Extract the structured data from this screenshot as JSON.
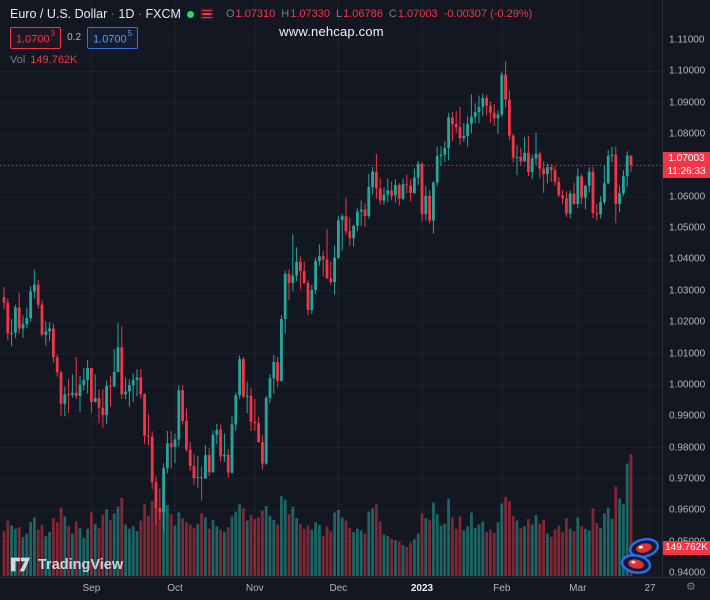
{
  "header": {
    "symbol": "Euro / U.S. Dollar",
    "sep": "·",
    "interval": "1D",
    "exchange": "FXCM",
    "ohlc": {
      "o_label": "O",
      "o": "1.07310",
      "h_label": "H",
      "h": "1.07330",
      "l_label": "L",
      "l": "1.06786",
      "c_label": "C",
      "c": "1.07003",
      "change": "-0.00307 (-0.29%)"
    },
    "bid": "1.0700",
    "bid_sup": "3",
    "spread": "0.2",
    "ask": "1.0700",
    "ask_sup": "5",
    "vol_label": "Vol",
    "vol_value": "149.762K"
  },
  "watermark": "www.nehcap.com",
  "price_badge": {
    "price": "1.07003",
    "countdown": "11:26:33"
  },
  "volume_badge": "149.762K",
  "footer": {
    "brand": "TradingView"
  },
  "gear_glyph": "⚙",
  "price_axis_labels": [
    "1.11000",
    "1.10000",
    "1.09000",
    "1.08000",
    "1.07000",
    "1.06000",
    "1.05000",
    "1.04000",
    "1.03000",
    "1.02000",
    "1.01000",
    "1.00000",
    "0.99000",
    "0.98000",
    "0.97000",
    "0.96000",
    "0.95000",
    "0.94000"
  ],
  "colors": {
    "background": "#131722",
    "grid": "#1e222d",
    "up": "#26a69a",
    "down": "#f23645",
    "vol_up": "rgba(38,166,154,0.55)",
    "vol_down": "rgba(242,54,69,0.5)",
    "axis_text": "#b2b5be",
    "muted_text": "#787b86",
    "badge_red": "#f23645",
    "ask_blue": "#5b9cf6"
  },
  "chart_data": {
    "type": "candlestick",
    "symbol": "EURUSD",
    "description": "Euro / U.S. Dollar",
    "interval": "1D",
    "exchange": "FXCM",
    "ylim": [
      0.94,
      1.11
    ],
    "price_step": 0.01,
    "last_price": 1.07003,
    "ohlc_current": {
      "o": 1.0731,
      "h": 1.0733,
      "l": 1.06786,
      "c": 1.07003,
      "change": -0.00307,
      "change_pct": -0.29
    },
    "volume_current_k": 149.762,
    "volume_unit": "K",
    "months": [
      {
        "label": "Sep",
        "index": 23,
        "major": false
      },
      {
        "label": "Oct",
        "index": 45,
        "major": false
      },
      {
        "label": "Nov",
        "index": 66,
        "major": false
      },
      {
        "label": "Dec",
        "index": 88,
        "major": false
      },
      {
        "label": "2023",
        "index": 110,
        "major": true
      },
      {
        "label": "Feb",
        "index": 131,
        "major": false
      },
      {
        "label": "Mar",
        "index": 151,
        "major": false
      },
      {
        "label": "27",
        "index": 170,
        "major": false
      }
    ],
    "candles": [
      [
        1.028,
        1.0312,
        1.024,
        1.0262,
        55
      ],
      [
        1.0262,
        1.0275,
        1.0142,
        1.0165,
        68
      ],
      [
        1.0165,
        1.021,
        1.0123,
        1.0166,
        62
      ],
      [
        1.0166,
        1.0255,
        1.015,
        1.0247,
        58
      ],
      [
        1.0247,
        1.0293,
        1.0163,
        1.018,
        60
      ],
      [
        1.018,
        1.0222,
        1.015,
        1.0194,
        48
      ],
      [
        1.0194,
        1.0247,
        1.018,
        1.0213,
        52
      ],
      [
        1.0213,
        1.0315,
        1.0203,
        1.0298,
        66
      ],
      [
        1.0298,
        1.0368,
        1.0276,
        1.032,
        72
      ],
      [
        1.032,
        1.0335,
        1.0244,
        1.0256,
        57
      ],
      [
        1.0256,
        1.0269,
        1.0154,
        1.016,
        63
      ],
      [
        1.016,
        1.0202,
        1.0125,
        1.0171,
        49
      ],
      [
        1.0171,
        1.02,
        1.014,
        1.018,
        54
      ],
      [
        1.018,
        1.0195,
        1.007,
        1.0088,
        71
      ],
      [
        1.0088,
        1.0097,
        1.0026,
        1.004,
        66
      ],
      [
        1.004,
        1.0046,
        0.9901,
        0.994,
        84
      ],
      [
        0.994,
        0.9995,
        0.99,
        0.997,
        73
      ],
      [
        0.997,
        1.0019,
        0.991,
        0.9968,
        61
      ],
      [
        0.9968,
        1.0033,
        0.9959,
        0.9975,
        52
      ],
      [
        0.9975,
        1.009,
        0.9955,
        0.9965,
        67
      ],
      [
        0.9965,
        1.0028,
        0.9914,
        1.0,
        59
      ],
      [
        1.0,
        1.0055,
        0.9983,
        1.0015,
        47
      ],
      [
        1.0015,
        1.0079,
        0.9972,
        1.0054,
        58
      ],
      [
        1.0054,
        1.0055,
        0.991,
        0.9945,
        78
      ],
      [
        0.9945,
        1.0033,
        0.9944,
        0.9958,
        64
      ],
      [
        0.9958,
        0.9985,
        0.9878,
        0.9927,
        59
      ],
      [
        0.9927,
        0.9987,
        0.9864,
        0.9904,
        75
      ],
      [
        0.9904,
        1.0014,
        0.9874,
        0.9997,
        82
      ],
      [
        0.9997,
        1.0029,
        0.993,
        0.9995,
        69
      ],
      [
        0.9995,
        1.0113,
        0.9993,
        1.0041,
        77
      ],
      [
        1.0041,
        1.0198,
        1.004,
        1.012,
        85
      ],
      [
        1.012,
        1.0187,
        0.9955,
        0.997,
        96
      ],
      [
        0.997,
        1.0023,
        0.9954,
        0.9979,
        63
      ],
      [
        0.9979,
        1.0018,
        0.993,
        0.9999,
        58
      ],
      [
        0.9999,
        1.0036,
        0.9945,
        1.0016,
        61
      ],
      [
        1.0016,
        1.005,
        0.9964,
        1.0024,
        55
      ],
      [
        1.0024,
        1.0051,
        0.9956,
        0.997,
        68
      ],
      [
        0.997,
        0.9974,
        0.9812,
        0.9838,
        88
      ],
      [
        0.9838,
        0.9907,
        0.9807,
        0.9835,
        74
      ],
      [
        0.9835,
        0.9852,
        0.9667,
        0.969,
        92
      ],
      [
        0.969,
        0.9709,
        0.9554,
        0.9608,
        95
      ],
      [
        0.9608,
        0.967,
        0.9571,
        0.9594,
        81
      ],
      [
        0.9594,
        0.975,
        0.9535,
        0.9734,
        99
      ],
      [
        0.9734,
        0.9853,
        0.9718,
        0.9814,
        87
      ],
      [
        0.9814,
        0.9854,
        0.9733,
        0.9802,
        76
      ],
      [
        0.9802,
        0.9844,
        0.9751,
        0.9826,
        62
      ],
      [
        0.9826,
        0.9999,
        0.9804,
        0.9983,
        78
      ],
      [
        0.9983,
        1.0,
        0.9873,
        0.9885,
        71
      ],
      [
        0.9885,
        0.9925,
        0.9787,
        0.9794,
        66
      ],
      [
        0.9794,
        0.9818,
        0.9726,
        0.9741,
        63
      ],
      [
        0.9741,
        0.9778,
        0.9681,
        0.9703,
        59
      ],
      [
        0.9703,
        0.9773,
        0.967,
        0.9706,
        64
      ],
      [
        0.9706,
        0.974,
        0.9631,
        0.9702,
        77
      ],
      [
        0.9702,
        0.9808,
        0.97,
        0.9776,
        72
      ],
      [
        0.9776,
        0.9799,
        0.9709,
        0.9721,
        58
      ],
      [
        0.9721,
        0.9854,
        0.972,
        0.984,
        69
      ],
      [
        0.984,
        0.9876,
        0.9812,
        0.9857,
        61
      ],
      [
        0.9857,
        0.9874,
        0.9756,
        0.9772,
        57
      ],
      [
        0.9772,
        0.9845,
        0.9754,
        0.9777,
        54
      ],
      [
        0.9777,
        0.9795,
        0.9704,
        0.972,
        60
      ],
      [
        0.972,
        0.9899,
        0.9718,
        0.9874,
        73
      ],
      [
        0.9874,
        0.9976,
        0.9853,
        0.9967,
        79
      ],
      [
        0.9967,
        1.0094,
        0.9956,
        1.0082,
        88
      ],
      [
        1.0082,
        1.0089,
        0.9959,
        0.9963,
        83
      ],
      [
        0.9963,
        1.001,
        0.991,
        0.9965,
        68
      ],
      [
        0.9965,
        0.999,
        0.9853,
        0.9883,
        75
      ],
      [
        0.9883,
        0.9955,
        0.9853,
        0.9878,
        70
      ],
      [
        0.9878,
        0.9898,
        0.9816,
        0.9817,
        72
      ],
      [
        0.9817,
        0.984,
        0.973,
        0.9749,
        80
      ],
      [
        0.9749,
        0.9965,
        0.9745,
        0.9958,
        86
      ],
      [
        0.9958,
        1.0034,
        0.9942,
        1.0021,
        74
      ],
      [
        1.0021,
        1.0096,
        0.9972,
        1.0073,
        69
      ],
      [
        1.0073,
        1.0089,
        0.9992,
        1.0013,
        63
      ],
      [
        1.0013,
        1.0222,
        1.001,
        1.021,
        98
      ],
      [
        1.021,
        1.0364,
        1.0163,
        1.0354,
        94
      ],
      [
        1.0354,
        1.0368,
        1.027,
        1.0325,
        76
      ],
      [
        1.0325,
        1.0481,
        1.0299,
        1.0349,
        85
      ],
      [
        1.0349,
        1.0439,
        1.033,
        1.0393,
        71
      ],
      [
        1.0393,
        1.041,
        1.0305,
        1.0363,
        64
      ],
      [
        1.0363,
        1.0394,
        1.032,
        1.0325,
        58
      ],
      [
        1.0325,
        1.0334,
        1.0222,
        1.0239,
        62
      ],
      [
        1.0239,
        1.0319,
        1.0226,
        1.0303,
        57
      ],
      [
        1.0303,
        1.0405,
        1.029,
        1.0395,
        66
      ],
      [
        1.0395,
        1.0448,
        1.038,
        1.041,
        63
      ],
      [
        1.041,
        1.0428,
        1.0347,
        1.04,
        49
      ],
      [
        1.04,
        1.0497,
        1.0338,
        1.034,
        61
      ],
      [
        1.034,
        1.0394,
        1.0319,
        1.0328,
        55
      ],
      [
        1.0328,
        1.0445,
        1.0288,
        1.0406,
        78
      ],
      [
        1.0406,
        1.0539,
        1.0402,
        1.0525,
        81
      ],
      [
        1.0525,
        1.0545,
        1.0428,
        1.0538,
        72
      ],
      [
        1.0538,
        1.0595,
        1.0479,
        1.049,
        68
      ],
      [
        1.049,
        1.0533,
        1.0443,
        1.0468,
        59
      ],
      [
        1.0468,
        1.0511,
        1.0442,
        1.0507,
        54
      ],
      [
        1.0507,
        1.0563,
        1.049,
        1.0553,
        58
      ],
      [
        1.0553,
        1.0588,
        1.0507,
        1.0559,
        56
      ],
      [
        1.0559,
        1.058,
        1.0504,
        1.0539,
        52
      ],
      [
        1.0539,
        1.0673,
        1.053,
        1.0631,
        79
      ],
      [
        1.0631,
        1.0695,
        1.0607,
        1.068,
        83
      ],
      [
        1.068,
        1.0737,
        1.0594,
        1.0627,
        88
      ],
      [
        1.0627,
        1.066,
        1.0576,
        1.0588,
        67
      ],
      [
        1.0588,
        1.063,
        1.0574,
        1.0607,
        51
      ],
      [
        1.0607,
        1.0658,
        1.0582,
        1.062,
        49
      ],
      [
        1.062,
        1.0648,
        1.0589,
        1.0604,
        46
      ],
      [
        1.0604,
        1.0656,
        1.0582,
        1.0638,
        44
      ],
      [
        1.0638,
        1.0644,
        1.0572,
        1.0594,
        42
      ],
      [
        1.0594,
        1.0658,
        1.059,
        1.064,
        38
      ],
      [
        1.064,
        1.067,
        1.0611,
        1.0636,
        36
      ],
      [
        1.0636,
        1.0656,
        1.0585,
        1.0612,
        41
      ],
      [
        1.0612,
        1.069,
        1.0609,
        1.0661,
        45
      ],
      [
        1.0661,
        1.0714,
        1.0637,
        1.0705,
        52
      ],
      [
        1.0705,
        1.071,
        1.052,
        1.0545,
        77
      ],
      [
        1.0545,
        1.0635,
        1.0525,
        1.0603,
        71
      ],
      [
        1.0603,
        1.0621,
        1.0515,
        1.0524,
        69
      ],
      [
        1.0524,
        1.065,
        1.0483,
        1.0645,
        90
      ],
      [
        1.0645,
        1.076,
        1.0633,
        1.073,
        76
      ],
      [
        1.073,
        1.0761,
        1.0699,
        1.0734,
        62
      ],
      [
        1.0734,
        1.0776,
        1.0711,
        1.0756,
        64
      ],
      [
        1.0756,
        1.0868,
        1.0716,
        1.0853,
        95
      ],
      [
        1.0853,
        1.087,
        1.0778,
        1.0832,
        72
      ],
      [
        1.0832,
        1.0874,
        1.0802,
        1.0822,
        58
      ],
      [
        1.0822,
        1.0887,
        1.0766,
        1.0787,
        73
      ],
      [
        1.0787,
        1.0835,
        1.0775,
        1.0794,
        56
      ],
      [
        1.0794,
        1.0858,
        1.076,
        1.0833,
        61
      ],
      [
        1.0833,
        1.0927,
        1.0802,
        1.0855,
        78
      ],
      [
        1.0855,
        1.0898,
        1.0835,
        1.087,
        59
      ],
      [
        1.087,
        1.0923,
        1.0835,
        1.0886,
        63
      ],
      [
        1.0886,
        1.0929,
        1.0858,
        1.0915,
        67
      ],
      [
        1.0915,
        1.0925,
        1.086,
        1.089,
        54
      ],
      [
        1.089,
        1.0904,
        1.0836,
        1.0868,
        57
      ],
      [
        1.0868,
        1.0896,
        1.0825,
        1.085,
        53
      ],
      [
        1.085,
        1.0875,
        1.0801,
        1.0862,
        66
      ],
      [
        1.0862,
        1.0998,
        1.0855,
        1.099,
        89
      ],
      [
        1.099,
        1.1033,
        1.0886,
        1.091,
        97
      ],
      [
        1.091,
        1.094,
        1.078,
        1.0795,
        92
      ],
      [
        1.0795,
        1.08,
        1.0709,
        1.0725,
        74
      ],
      [
        1.0725,
        1.0765,
        1.0669,
        1.0727,
        68
      ],
      [
        1.0727,
        1.0757,
        1.07,
        1.0713,
        59
      ],
      [
        1.0713,
        1.0791,
        1.0711,
        1.074,
        61
      ],
      [
        1.074,
        1.0794,
        1.0666,
        1.0679,
        70
      ],
      [
        1.0679,
        1.0735,
        1.0656,
        1.0722,
        63
      ],
      [
        1.0722,
        1.0804,
        1.0702,
        1.0737,
        75
      ],
      [
        1.0737,
        1.0744,
        1.066,
        1.069,
        64
      ],
      [
        1.069,
        1.0712,
        1.0612,
        1.0672,
        69
      ],
      [
        1.0672,
        1.0707,
        1.0642,
        1.0695,
        52
      ],
      [
        1.0695,
        1.0705,
        1.0647,
        1.0685,
        48
      ],
      [
        1.0685,
        1.0697,
        1.0635,
        1.0648,
        57
      ],
      [
        1.0648,
        1.0663,
        1.0598,
        1.0605,
        62
      ],
      [
        1.0605,
        1.0622,
        1.0577,
        1.0595,
        54
      ],
      [
        1.0595,
        1.0617,
        1.0536,
        1.0546,
        71
      ],
      [
        1.0546,
        1.062,
        1.0532,
        1.061,
        58
      ],
      [
        1.061,
        1.0645,
        1.0574,
        1.0577,
        55
      ],
      [
        1.0577,
        1.0691,
        1.0565,
        1.0665,
        72
      ],
      [
        1.0665,
        1.0673,
        1.0577,
        1.0597,
        61
      ],
      [
        1.0597,
        1.0638,
        1.056,
        1.0635,
        58
      ],
      [
        1.0635,
        1.0694,
        1.0614,
        1.068,
        56
      ],
      [
        1.068,
        1.0695,
        1.0532,
        1.0548,
        83
      ],
      [
        1.0548,
        1.0577,
        1.0524,
        1.0545,
        65
      ],
      [
        1.0545,
        1.0601,
        1.0531,
        1.0583,
        59
      ],
      [
        1.0583,
        1.0701,
        1.0575,
        1.0643,
        77
      ],
      [
        1.0643,
        1.0749,
        1.064,
        1.073,
        84
      ],
      [
        1.073,
        1.0759,
        1.071,
        1.0734,
        70
      ],
      [
        1.0734,
        1.076,
        1.0516,
        1.0577,
        110
      ],
      [
        1.0577,
        1.0635,
        1.0551,
        1.0611,
        95
      ],
      [
        1.0611,
        1.0685,
        1.0602,
        1.0665,
        88
      ],
      [
        1.0665,
        1.0745,
        1.0632,
        1.0731,
        138
      ],
      [
        1.0731,
        1.0733,
        1.06786,
        1.07003,
        149.762
      ]
    ]
  }
}
